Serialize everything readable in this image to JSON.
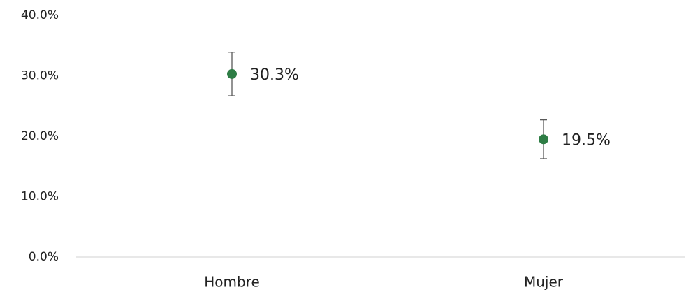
{
  "chart_data": {
    "type": "point",
    "categories": [
      "Hombre",
      "Mujer"
    ],
    "values": [
      30.3,
      19.5
    ],
    "value_labels": [
      "30.3%",
      "19.5%"
    ],
    "errors": [
      3.6,
      3.2
    ],
    "color": "#2e7d45",
    "error_color": "#595959",
    "ylim": [
      0,
      40
    ],
    "yticks": [
      {
        "value": 0,
        "label": "0.0%"
      },
      {
        "value": 10,
        "label": "10.0%"
      },
      {
        "value": 20,
        "label": "20.0%"
      },
      {
        "value": 30,
        "label": "30.0%"
      },
      {
        "value": 40,
        "label": "40.0%"
      }
    ],
    "grid": false
  }
}
